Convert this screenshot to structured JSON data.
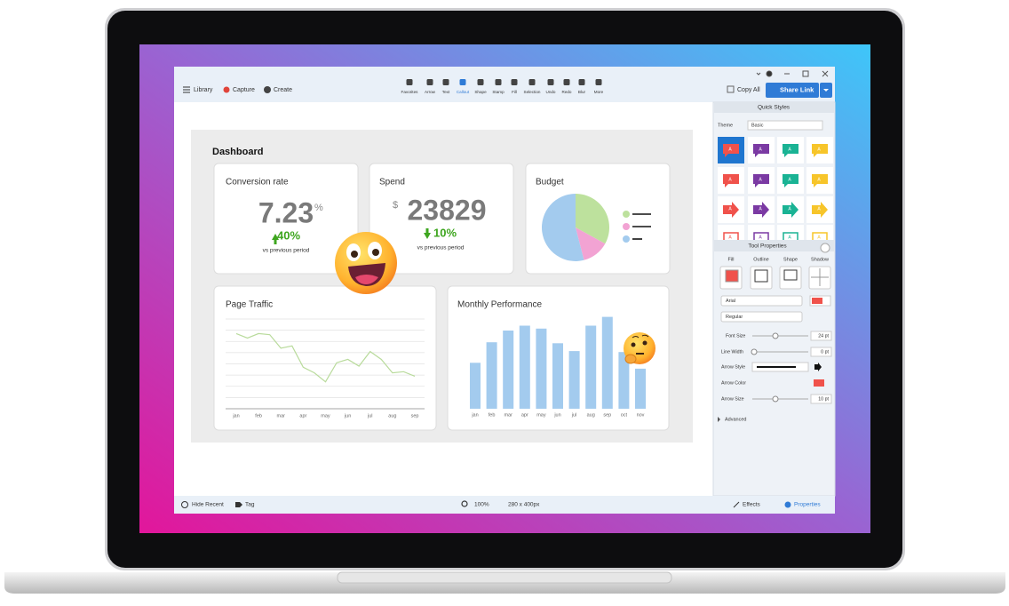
{
  "toolbar": {
    "left": [
      "Library",
      "Capture",
      "Create"
    ],
    "tools": [
      "Favorites",
      "Arrow",
      "Text",
      "Callout",
      "Shape",
      "Stamp",
      "Fill",
      "Selection",
      "Undo",
      "Redo",
      "Blur",
      "More"
    ],
    "copy_all": "Copy All",
    "share_link": "Share Link"
  },
  "dashboard": {
    "title": "Dashboard",
    "conversion": {
      "title": "Conversion rate",
      "value": "7.23",
      "unit": "%",
      "change": "40%",
      "note": "vs previous period"
    },
    "spend": {
      "title": "Spend",
      "currency": "$",
      "value": "23829",
      "change": "10%",
      "note": "vs previous period"
    }
  },
  "chart_data": [
    {
      "type": "pie",
      "title": "Budget",
      "values": [
        33,
        13,
        54
      ],
      "colors": [
        "#bde19d",
        "#f2a3d3",
        "#a3cbee"
      ]
    },
    {
      "type": "line",
      "title": "Page Traffic",
      "categories": [
        "jan",
        null,
        "feb",
        null,
        "mar",
        null,
        "apr",
        null,
        "may",
        null,
        "jun",
        null,
        "jul",
        null,
        "aug",
        null,
        "sep"
      ],
      "values": [
        6.7,
        6.3,
        6.7,
        6.6,
        5.4,
        5.6,
        3.7,
        3.2,
        2.4,
        4.1,
        4.4,
        3.8,
        5.1,
        4.4,
        3.2,
        3.3,
        2.9
      ],
      "color": "#b9db9c",
      "ylim": [
        0,
        8
      ],
      "yticks": [
        0,
        1,
        2,
        3,
        4,
        5,
        6,
        7,
        8
      ],
      "grid": true
    },
    {
      "type": "bar",
      "title": "Monthly Performance",
      "categories": [
        "jan",
        "feb",
        "mar",
        "apr",
        "may",
        "jun",
        "jul",
        "aug",
        "sep",
        "oct",
        "nov"
      ],
      "values": [
        47,
        68,
        80,
        85,
        82,
        67,
        59,
        85,
        94,
        58,
        41
      ],
      "color": "#a3cbee",
      "ylim": [
        0,
        100
      ]
    }
  ],
  "panel": {
    "quick_styles": "Quick Styles",
    "theme": "Theme",
    "theme_value": "Basic",
    "style_label": "A",
    "style_colors": [
      "#f0524b",
      "#7b3aa3",
      "#1ab394",
      "#f7c52a"
    ],
    "tool_properties": "Tool Properties",
    "tabs": [
      "Fill",
      "Outline",
      "Shape",
      "Shadow"
    ],
    "font": "Arial",
    "font_style": "Regular",
    "rows": [
      {
        "label": "Font Size",
        "value": "24 pt"
      },
      {
        "label": "Line Width",
        "value": "0 pt"
      },
      {
        "label": "Arrow Style"
      },
      {
        "label": "Arrow Color"
      },
      {
        "label": "Arrow Size",
        "value": "10 pt"
      }
    ],
    "advanced": "Advanced"
  },
  "status": {
    "hide_recent": "Hide Recent",
    "tag": "Tag",
    "zoom": "100%",
    "size": "280 x 400px",
    "effects": "Effects",
    "properties": "Properties"
  }
}
